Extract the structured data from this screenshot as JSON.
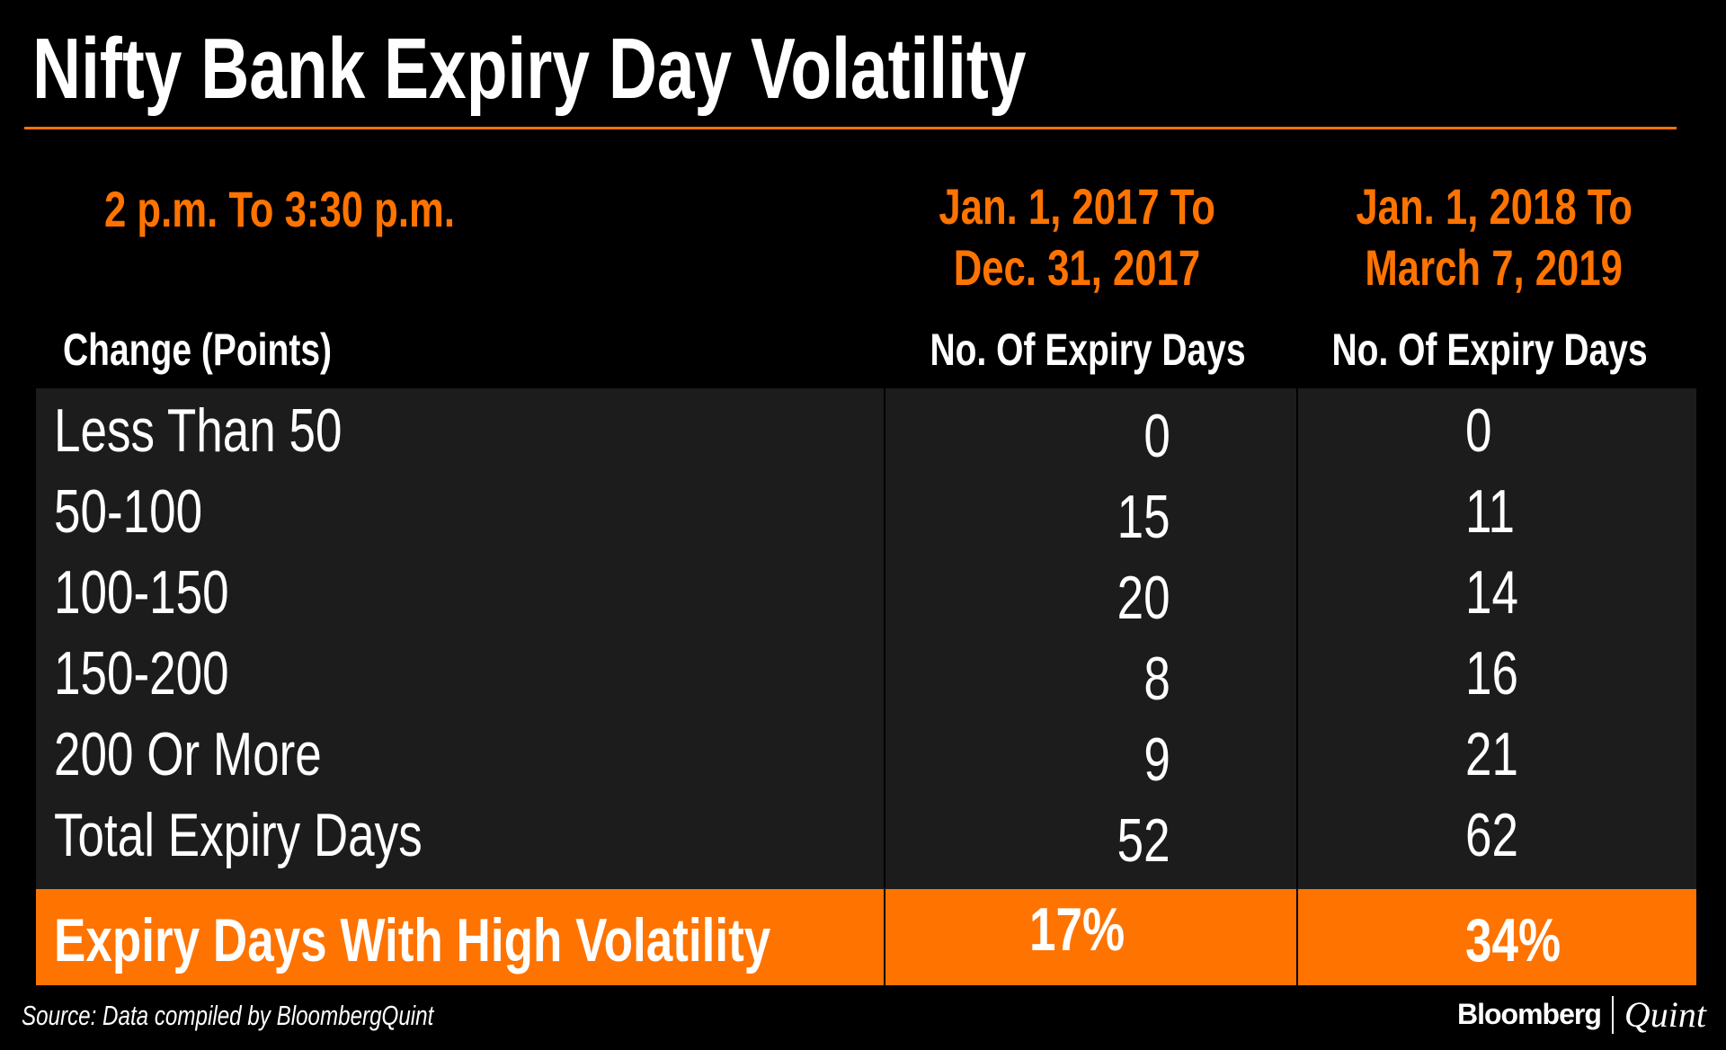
{
  "title": "Nifty Bank Expiry Day Volatility",
  "time_window": "2 p.m. To 3:30 p.m.",
  "periods": [
    {
      "line1": "Jan. 1, 2017 To",
      "line2": "Dec. 31, 2017"
    },
    {
      "line1": "Jan. 1, 2018 To",
      "line2": "March 7, 2019"
    }
  ],
  "column_headers": [
    "Change  (Points)",
    "No. Of Expiry Days",
    "No. Of Expiry Days"
  ],
  "rows": [
    {
      "label": "Less Than 50",
      "v2017": "0",
      "v2018": "0"
    },
    {
      "label": "50-100",
      "v2017": "15",
      "v2018": "11"
    },
    {
      "label": "100-150",
      "v2017": "20",
      "v2018": "14"
    },
    {
      "label": "150-200",
      "v2017": "8",
      "v2018": "16"
    },
    {
      "label": "200 Or More",
      "v2017": "9",
      "v2018": "21"
    },
    {
      "label": "Total Expiry Days",
      "v2017": "52",
      "v2018": "62"
    }
  ],
  "highlight_row": {
    "label": "Expiry Days With High Volatility",
    "v2017": "17%",
    "v2018": "34%"
  },
  "source": "Source: Data compiled by BloombergQuint",
  "logo": {
    "brand": "Bloomberg",
    "sub": "Quint"
  },
  "colors": {
    "accent": "#ff7300",
    "table_bg": "#1c1c1c",
    "background": "#000000"
  }
}
